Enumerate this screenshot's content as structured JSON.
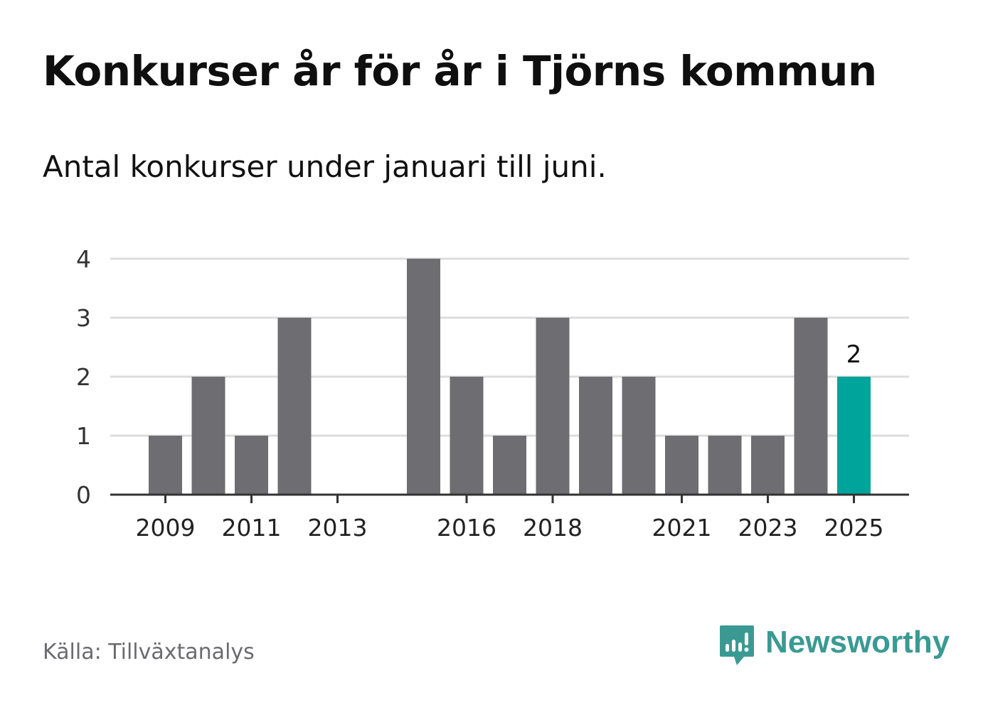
{
  "header": {
    "title": "Konkurser år för år i Tjörns kommun",
    "subtitle": "Antal konkurser under januari till juni."
  },
  "footer": {
    "source": "Källa: Tillväxtanalys",
    "brand": "Newsworthy"
  },
  "colors": {
    "bar": "#6e6d72",
    "highlight": "#00a49a",
    "grid": "#dcdcdc",
    "axis": "#333333",
    "brand": "#3a9a93"
  },
  "chart_data": {
    "type": "bar",
    "categories": [
      "2009",
      "2010",
      "2011",
      "2012",
      "2013",
      "2014",
      "2015",
      "2016",
      "2017",
      "2018",
      "2019",
      "2020",
      "2021",
      "2022",
      "2023",
      "2024",
      "2025"
    ],
    "values": [
      1,
      2,
      1,
      3,
      0,
      0,
      4,
      2,
      1,
      3,
      2,
      2,
      1,
      1,
      1,
      3,
      2
    ],
    "x_tick_labels": [
      "2009",
      "2011",
      "2013",
      "2016",
      "2018",
      "2021",
      "2023",
      "2025"
    ],
    "y_ticks": [
      0,
      1,
      2,
      3,
      4
    ],
    "ylim": [
      0,
      4
    ],
    "highlight_category": "2025",
    "highlight_label": "2",
    "grid": true,
    "legend": "none"
  }
}
